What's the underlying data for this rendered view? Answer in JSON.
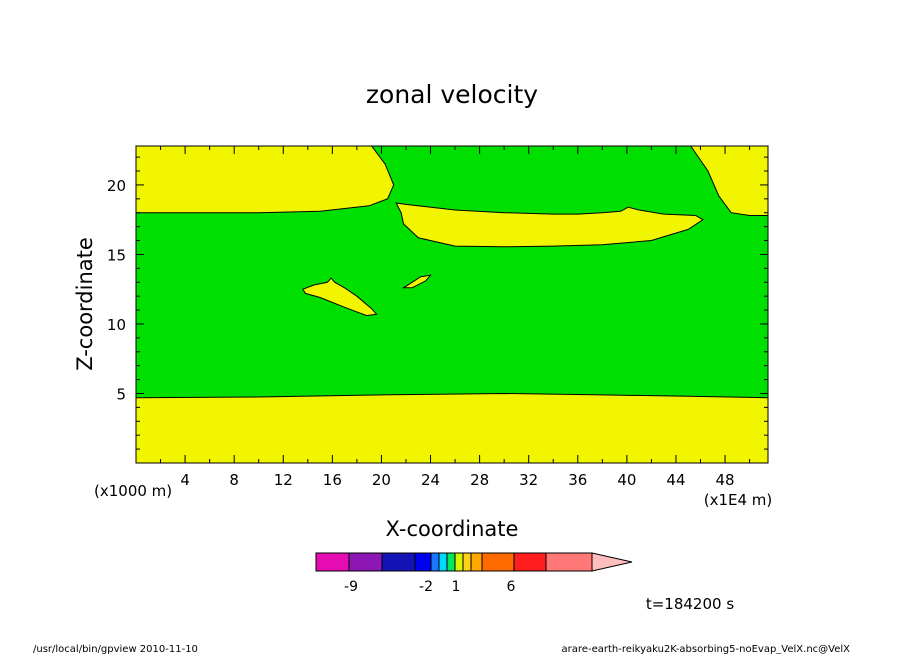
{
  "chart_data": {
    "type": "contour",
    "title": "zonal velocity",
    "xlabel": "X-coordinate",
    "ylabel": "Z-coordinate",
    "x_units": "(x1E4 m)",
    "y_units": "(x1000 m)",
    "xlim": [
      0,
      51.5
    ],
    "ylim": [
      0,
      22.8
    ],
    "x_ticks": [
      4,
      8,
      12,
      16,
      20,
      24,
      28,
      32,
      36,
      40,
      44,
      48
    ],
    "y_ticks": [
      5,
      10,
      15,
      20
    ],
    "time_label": "t=184200 s",
    "regions": [
      {
        "name": "low",
        "color": "#f2f500",
        "outline": [
          [
            0,
            0
          ],
          [
            51.5,
            0
          ],
          [
            51.5,
            4.7
          ],
          [
            45,
            4.8
          ],
          [
            38,
            4.9
          ],
          [
            30,
            5.0
          ],
          [
            20,
            4.9
          ],
          [
            10,
            4.75
          ],
          [
            0,
            4.7
          ]
        ]
      },
      {
        "name": "top-left",
        "color": "#f2f500",
        "outline": [
          [
            0,
            22.8
          ],
          [
            19.2,
            22.8
          ],
          [
            20.3,
            21.5
          ],
          [
            21,
            20.0
          ],
          [
            20.5,
            19.0
          ],
          [
            19,
            18.5
          ],
          [
            15,
            18.1
          ],
          [
            10,
            18.0
          ],
          [
            0,
            18.0
          ]
        ]
      },
      {
        "name": "top-right",
        "color": "#f2f500",
        "outline": [
          [
            45.2,
            22.8
          ],
          [
            51.5,
            22.8
          ],
          [
            51.5,
            17.8
          ],
          [
            50,
            17.8
          ],
          [
            48.5,
            18.0
          ],
          [
            47.5,
            19.2
          ],
          [
            46.6,
            21.0
          ]
        ]
      },
      {
        "name": "upper-band",
        "color": "#f2f500",
        "outline": [
          [
            21.2,
            18.7
          ],
          [
            22,
            18.6
          ],
          [
            26,
            18.2
          ],
          [
            30,
            18.0
          ],
          [
            34,
            17.9
          ],
          [
            36,
            17.9
          ],
          [
            38,
            18.0
          ],
          [
            39.5,
            18.1
          ],
          [
            40.1,
            18.4
          ],
          [
            41,
            18.2
          ],
          [
            43,
            17.9
          ],
          [
            45.6,
            17.8
          ],
          [
            46.2,
            17.5
          ],
          [
            45,
            16.8
          ],
          [
            42,
            16.0
          ],
          [
            38,
            15.7
          ],
          [
            34,
            15.6
          ],
          [
            30,
            15.55
          ],
          [
            26,
            15.6
          ],
          [
            23,
            16.2
          ],
          [
            21.8,
            17.2
          ],
          [
            21.6,
            18.0
          ],
          [
            21.2,
            18.7
          ]
        ]
      },
      {
        "name": "blob-a",
        "color": "#f2f500",
        "outline": [
          [
            13.6,
            12.5
          ],
          [
            14.5,
            12.8
          ],
          [
            15.6,
            13.0
          ],
          [
            15.9,
            13.3
          ],
          [
            16.2,
            13.0
          ],
          [
            17,
            12.6
          ],
          [
            18,
            12.0
          ],
          [
            19.2,
            11.1
          ],
          [
            19.6,
            10.7
          ],
          [
            18.8,
            10.6
          ],
          [
            17,
            11.2
          ],
          [
            15,
            11.9
          ],
          [
            13.8,
            12.2
          ],
          [
            13.6,
            12.5
          ]
        ]
      },
      {
        "name": "blob-b",
        "color": "#f2f500",
        "outline": [
          [
            21.8,
            12.6
          ],
          [
            22.5,
            13.0
          ],
          [
            23.2,
            13.4
          ],
          [
            24,
            13.5
          ],
          [
            23.6,
            13.1
          ],
          [
            22.5,
            12.6
          ],
          [
            21.8,
            12.6
          ]
        ]
      }
    ],
    "colorbar": {
      "colors": [
        "#e60cb4",
        "#8c17b4",
        "#1414b4",
        "#0000f0",
        "#1a75ff",
        "#00d8ff",
        "#00e85c",
        "#d8f500",
        "#ffd21a",
        "#ffa800",
        "#ff6a00",
        "#ff1e1e",
        "#ff7878",
        "#ffbebe"
      ],
      "labels": [
        "-9",
        "-2",
        "1",
        "6"
      ]
    },
    "footer_left": "/usr/local/bin/gpview  2010-11-10",
    "footer_right": "arare-earth-reikyaku2K-absorbing5-noEvap_VelX.nc@VelX"
  },
  "colors": {
    "positive_small": "#f2f500",
    "near_zero": "#00e000"
  }
}
